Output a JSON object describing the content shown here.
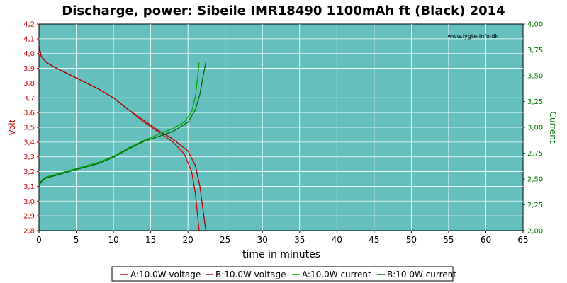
{
  "chart_data": {
    "type": "line",
    "title": "Discharge, power: Sibeile IMR18490 1100mAh ft (Black) 2014",
    "watermark": "www.lygte-info.dk",
    "xlabel": "time in minutes",
    "ylabel_left": "Volt",
    "ylabel_right": "Current",
    "xlim": [
      0,
      65
    ],
    "ylim_left": [
      2.8,
      4.2
    ],
    "ylim_right": [
      2.0,
      4.0
    ],
    "x_ticks": [
      "0",
      "5",
      "10",
      "15",
      "20",
      "25",
      "30",
      "35",
      "40",
      "45",
      "50",
      "55",
      "60",
      "65"
    ],
    "y_left_ticks": [
      "2,8",
      "2,9",
      "3,0",
      "3,1",
      "3,2",
      "3,3",
      "3,4",
      "3,5",
      "3,6",
      "3,7",
      "3,8",
      "3,9",
      "4,0",
      "4,1",
      "4,2"
    ],
    "y_right_ticks": [
      "2,00",
      "2,25",
      "2,50",
      "2,75",
      "3,00",
      "3,25",
      "3,50",
      "3,75",
      "4,00"
    ],
    "grid": true,
    "plot_background": "#66BFBF",
    "legend_position": "bottom",
    "series": [
      {
        "name": "A:10.0W voltage",
        "axis": "left",
        "color": "#cc0000",
        "x": [
          0,
          0.3,
          1,
          2,
          4,
          6,
          8,
          10,
          12,
          14,
          16,
          18,
          19.5,
          20.5,
          21,
          21.3,
          21.5
        ],
        "y": [
          4.06,
          3.98,
          3.94,
          3.91,
          3.86,
          3.81,
          3.76,
          3.7,
          3.62,
          3.54,
          3.47,
          3.4,
          3.32,
          3.2,
          3.05,
          2.9,
          2.8
        ]
      },
      {
        "name": "B:10.0W voltage",
        "axis": "left",
        "color": "#aa0000",
        "x": [
          0,
          0.3,
          1,
          2,
          4,
          6,
          8,
          10,
          12,
          14,
          16,
          18,
          20,
          21,
          21.6,
          22,
          22.4
        ],
        "y": [
          4.05,
          3.98,
          3.94,
          3.91,
          3.86,
          3.81,
          3.76,
          3.7,
          3.62,
          3.55,
          3.48,
          3.42,
          3.34,
          3.24,
          3.1,
          2.95,
          2.8
        ]
      },
      {
        "name": "A:10.0W current",
        "axis": "right",
        "color": "#00aa00",
        "x": [
          0,
          0.2,
          0.5,
          1,
          2,
          4,
          6,
          8,
          10,
          12,
          14,
          16,
          18,
          19.5,
          20.5,
          21,
          21.3,
          21.5
        ],
        "y": [
          2.43,
          2.47,
          2.5,
          2.52,
          2.54,
          2.58,
          2.62,
          2.66,
          2.72,
          2.8,
          2.87,
          2.93,
          2.99,
          3.05,
          3.15,
          3.3,
          3.48,
          3.63
        ]
      },
      {
        "name": "B:10.0W current",
        "axis": "right",
        "color": "#006600",
        "x": [
          0,
          0.2,
          0.5,
          1,
          2,
          4,
          6,
          8,
          10,
          12,
          14,
          16,
          18,
          20,
          21,
          21.6,
          22,
          22.4
        ],
        "y": [
          2.42,
          2.46,
          2.49,
          2.51,
          2.53,
          2.57,
          2.61,
          2.65,
          2.71,
          2.79,
          2.86,
          2.91,
          2.96,
          3.05,
          3.17,
          3.32,
          3.48,
          3.63
        ]
      }
    ]
  }
}
